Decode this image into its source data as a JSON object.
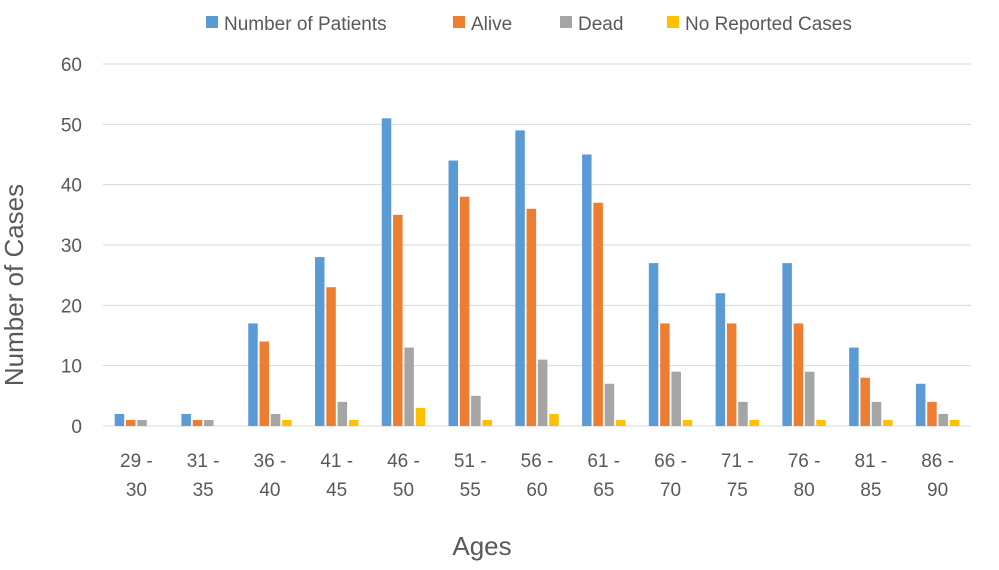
{
  "chart_data": {
    "type": "bar",
    "title": "",
    "xlabel": "Ages",
    "ylabel": "Number of Cases",
    "ylim": [
      0,
      60
    ],
    "yticks": [
      0,
      10,
      20,
      30,
      40,
      50,
      60
    ],
    "grid": true,
    "legend_position": "top",
    "categories": [
      [
        "29 -",
        "30"
      ],
      [
        "31 -",
        "35"
      ],
      [
        "36 -",
        "40"
      ],
      [
        "41 -",
        "45"
      ],
      [
        "46 -",
        "50"
      ],
      [
        "51 -",
        "55"
      ],
      [
        "56 -",
        "60"
      ],
      [
        "61 -",
        "65"
      ],
      [
        "66 -",
        "70"
      ],
      [
        "71 -",
        "75"
      ],
      [
        "76 -",
        "80"
      ],
      [
        "81 -",
        "85"
      ],
      [
        "86 -",
        "90"
      ]
    ],
    "series": [
      {
        "name": "Number of Patients",
        "color": "#5b9bd5",
        "values": [
          2,
          2,
          17,
          28,
          51,
          44,
          49,
          45,
          27,
          22,
          27,
          13,
          7
        ]
      },
      {
        "name": "Alive",
        "color": "#ed7d31",
        "values": [
          1,
          1,
          14,
          23,
          35,
          38,
          36,
          37,
          17,
          17,
          17,
          8,
          4
        ]
      },
      {
        "name": "Dead",
        "color": "#a5a5a5",
        "values": [
          1,
          1,
          2,
          4,
          13,
          5,
          11,
          7,
          9,
          4,
          9,
          4,
          2
        ]
      },
      {
        "name": "No Reported Cases",
        "color": "#ffc000",
        "values": [
          0,
          0,
          1,
          1,
          3,
          1,
          2,
          1,
          1,
          1,
          1,
          1,
          1
        ]
      }
    ]
  }
}
